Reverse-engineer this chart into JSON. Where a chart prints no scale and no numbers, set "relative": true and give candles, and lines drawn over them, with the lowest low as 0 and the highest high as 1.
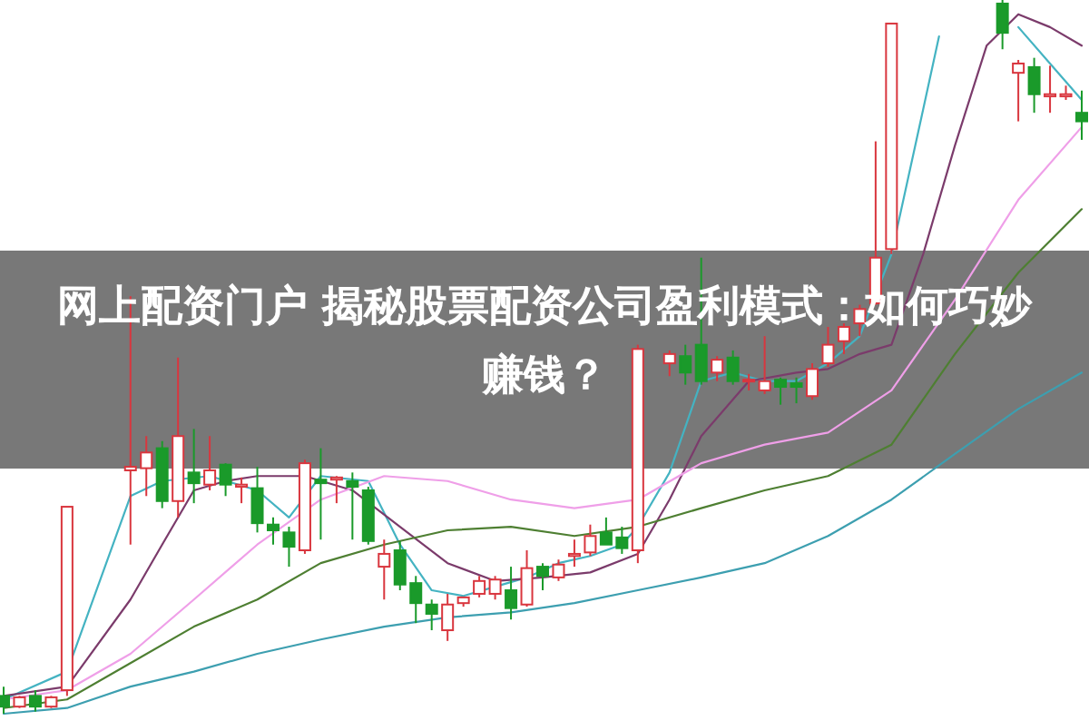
{
  "chart_data": {
    "type": "candlestick",
    "title": "网上配资门户 揭秘股票配资公司盈利模式：如何巧妙赚钱？",
    "relative": true,
    "categories": [
      null,
      null,
      null,
      null,
      null,
      null,
      null,
      null,
      null,
      null,
      null,
      null,
      null,
      null,
      null,
      null,
      null,
      null,
      null,
      null,
      null,
      null,
      null,
      null,
      null,
      null,
      null,
      null,
      null,
      null,
      null,
      null,
      null,
      null,
      null,
      null,
      null,
      null,
      null,
      null,
      null,
      null,
      null,
      null,
      null,
      null,
      null,
      null,
      null,
      null,
      null,
      null,
      null,
      null,
      null,
      null,
      null,
      null,
      null,
      null,
      null,
      null,
      null,
      null,
      null,
      null,
      null,
      null,
      null
    ],
    "ohlc": [
      [
        0.025,
        0.038,
        0,
        0.01
      ],
      [
        0.01,
        0.025,
        0.008,
        0.023
      ],
      [
        0.025,
        0.033,
        0.003,
        0.01
      ],
      [
        0.01,
        0.025,
        0.008,
        0.023
      ],
      [
        0.033,
        0.29,
        0.025,
        0.29
      ],
      null,
      null,
      null,
      [
        0.341,
        0.585,
        0.237,
        0.346
      ],
      [
        0.344,
        0.389,
        0.305,
        0.366
      ],
      [
        0.372,
        0.382,
        0.288,
        0.298
      ],
      [
        0.298,
        0.499,
        0.275,
        0.389
      ],
      [
        0.338,
        0.399,
        0.295,
        0.323
      ],
      [
        0.321,
        0.389,
        0.313,
        0.341
      ],
      [
        0.349,
        0.351,
        0.305,
        0.321
      ],
      [
        0.318,
        0.331,
        0.295,
        0.321
      ],
      [
        0.316,
        0.346,
        0.254,
        0.267
      ],
      [
        0.265,
        0.275,
        0.237,
        0.257
      ],
      [
        0.254,
        0.262,
        0.206,
        0.234
      ],
      [
        0.229,
        0.356,
        0.224,
        0.351
      ],
      [
        0.328,
        0.372,
        0.244,
        0.323
      ],
      [
        0.328,
        0.333,
        0.295,
        0.331
      ],
      [
        0.326,
        0.338,
        0.244,
        0.318
      ],
      [
        0.313,
        0.318,
        0.237,
        0.242
      ],
      [
        0.206,
        0.244,
        0.16,
        0.224
      ],
      [
        0.229,
        0.242,
        0.173,
        0.181
      ],
      [
        0.183,
        0.193,
        0.127,
        0.155
      ],
      [
        0.153,
        0.16,
        0.117,
        0.14
      ],
      [
        0.117,
        0.168,
        0.102,
        0.153
      ],
      [
        0.155,
        0.163,
        0.15,
        0.163
      ],
      [
        0.168,
        0.193,
        0.163,
        0.186
      ],
      [
        0.168,
        0.193,
        0.16,
        0.188
      ],
      [
        0.173,
        0.206,
        0.132,
        0.148
      ],
      [
        0.153,
        0.229,
        0.15,
        0.204
      ],
      [
        0.206,
        0.211,
        0.173,
        0.193
      ],
      [
        0.191,
        0.216,
        0.186,
        0.209
      ],
      [
        0.221,
        0.244,
        0.206,
        0.224
      ],
      [
        0.226,
        0.265,
        0.221,
        0.249
      ],
      [
        0.254,
        0.275,
        0.237,
        0.237
      ],
      [
        0.247,
        0.262,
        0.224,
        0.232
      ],
      [
        0.229,
        0.517,
        0.211,
        0.511
      ],
      null,
      [
        0.491,
        0.509,
        0.473,
        0.504
      ],
      [
        0.501,
        0.517,
        0.461,
        0.478
      ],
      [
        0.517,
        0.639,
        0.461,
        0.466
      ],
      [
        0.478,
        0.501,
        0.466,
        0.496
      ],
      [
        0.499,
        0.509,
        0.461,
        0.466
      ],
      [
        0.466,
        0.476,
        0.453,
        0.468
      ],
      [
        0.453,
        0.529,
        0.448,
        0.466
      ],
      [
        0.468,
        0.471,
        0.433,
        0.458
      ],
      [
        0.463,
        0.471,
        0.435,
        0.458
      ],
      [
        0.445,
        0.491,
        0.44,
        0.483
      ],
      [
        0.491,
        0.542,
        0.486,
        0.517
      ],
      [
        0.522,
        0.547,
        0.504,
        0.542
      ],
      [
        0.547,
        0.573,
        0.529,
        0.567
      ],
      [
        0.575,
        0.802,
        0.573,
        0.639
      ],
      [
        0.651,
        0.967,
        0.644,
        0.967
      ],
      null,
      null,
      null,
      null,
      null,
      null,
      [
        0.995,
        1,
        0.931,
        0.954
      ],
      [
        0.898,
        0.916,
        0.83,
        0.911
      ],
      [
        0.906,
        0.919,
        0.842,
        0.868
      ],
      [
        0.865,
        0.908,
        0.842,
        0.868
      ],
      [
        0.865,
        0.88,
        0.86,
        0.868
      ],
      [
        0.842,
        0.873,
        0.804,
        0.83
      ]
    ],
    "series": [
      {
        "type": "line",
        "color": "#44b3c2",
        "values": [
          0.02,
          null,
          null,
          null,
          0.059,
          null,
          null,
          null,
          0.305,
          null,
          0.326,
          null,
          null,
          0.333,
          null,
          null,
          0.313,
          null,
          0.275,
          null,
          0.333,
          null,
          null,
          0.326,
          null,
          0.237,
          null,
          0.173,
          null,
          0.165,
          null,
          0.178,
          null,
          0.191,
          null,
          0.211,
          null,
          0.221,
          null,
          0.237,
          0.262,
          null,
          0.338,
          null,
          0.466,
          null,
          0.478,
          null,
          0.466,
          null,
          0.466,
          null,
          0.491,
          null,
          0.529,
          null,
          0.644,
          null,
          0.847,
          0.949,
          null,
          null,
          null,
          null,
          null,
          null,
          null,
          null,
          null
        ]
      },
      {
        "type": "line",
        "color": "#44b3c2",
        "values": [
          null,
          null,
          null,
          null,
          null,
          null,
          null,
          null,
          null,
          null,
          null,
          null,
          null,
          null,
          null,
          null,
          null,
          null,
          null,
          null,
          null,
          null,
          null,
          null,
          null,
          null,
          null,
          null,
          null,
          null,
          null,
          null,
          null,
          null,
          null,
          null,
          null,
          null,
          null,
          null,
          null,
          null,
          null,
          null,
          null,
          null,
          null,
          null,
          null,
          null,
          null,
          null,
          null,
          null,
          null,
          null,
          null,
          null,
          null,
          null,
          null,
          null,
          null,
          null,
          0.962,
          null,
          0.911,
          null,
          0.86
        ]
      },
      {
        "type": "line",
        "color": "#7b3b6b",
        "values": [
          0.025,
          null,
          null,
          null,
          0.038,
          null,
          null,
          null,
          0.16,
          null,
          0.237,
          null,
          0.313,
          null,
          0.326,
          null,
          0.333,
          null,
          null,
          0.333,
          null,
          null,
          0.313,
          null,
          null,
          0.262,
          null,
          null,
          0.211,
          null,
          null,
          0.186,
          null,
          null,
          0.191,
          null,
          null,
          0.198,
          null,
          null,
          0.224,
          null,
          0.3,
          null,
          0.389,
          null,
          null,
          0.466,
          null,
          null,
          0.478,
          null,
          0.483,
          null,
          0.504,
          null,
          0.517,
          null,
          0.644,
          null,
          0.796,
          null,
          0.936,
          null,
          0.98,
          null,
          0.962,
          null,
          0.936
        ]
      },
      {
        "type": "line",
        "color": "#ef9fe8",
        "values": [
          0.02,
          null,
          null,
          null,
          0.033,
          null,
          null,
          null,
          0.084,
          null,
          null,
          null,
          0.16,
          null,
          null,
          null,
          0.237,
          null,
          null,
          null,
          0.3,
          null,
          null,
          null,
          0.333,
          null,
          null,
          null,
          0.326,
          null,
          null,
          null,
          0.3,
          null,
          null,
          null,
          0.288,
          null,
          null,
          null,
          0.3,
          null,
          null,
          null,
          0.351,
          null,
          null,
          null,
          0.377,
          null,
          null,
          null,
          0.394,
          null,
          null,
          null,
          0.453,
          null,
          null,
          null,
          0.58,
          null,
          null,
          null,
          0.72,
          null,
          null,
          null,
          0.822
        ]
      },
      {
        "type": "line",
        "color": "#4e7f32",
        "values": [
          0.008,
          null,
          null,
          null,
          0.02,
          null,
          null,
          null,
          0.071,
          null,
          null,
          null,
          0.122,
          null,
          null,
          null,
          0.16,
          null,
          null,
          null,
          0.211,
          null,
          null,
          null,
          0.237,
          null,
          null,
          null,
          0.257,
          null,
          null,
          null,
          0.262,
          null,
          null,
          null,
          0.249,
          null,
          null,
          null,
          0.262,
          null,
          null,
          null,
          0.288,
          null,
          null,
          null,
          0.313,
          null,
          null,
          null,
          0.333,
          null,
          null,
          null,
          0.377,
          null,
          null,
          null,
          0.504,
          null,
          null,
          null,
          0.618,
          null,
          null,
          null,
          0.707
        ]
      },
      {
        "type": "line",
        "color": "#3d9fb0",
        "values": [
          0,
          null,
          null,
          null,
          0.008,
          null,
          null,
          null,
          0.038,
          null,
          null,
          null,
          0.059,
          null,
          null,
          null,
          0.084,
          null,
          null,
          null,
          0.104,
          null,
          null,
          null,
          0.122,
          null,
          null,
          null,
          0.135,
          null,
          null,
          null,
          0.142,
          null,
          null,
          null,
          0.155,
          null,
          null,
          null,
          0.173,
          null,
          null,
          null,
          0.191,
          null,
          null,
          null,
          0.211,
          null,
          null,
          null,
          0.249,
          null,
          null,
          null,
          0.3,
          null,
          null,
          null,
          0.364,
          null,
          null,
          null,
          0.427,
          null,
          null,
          null,
          0.478
        ]
      }
    ]
  }
}
